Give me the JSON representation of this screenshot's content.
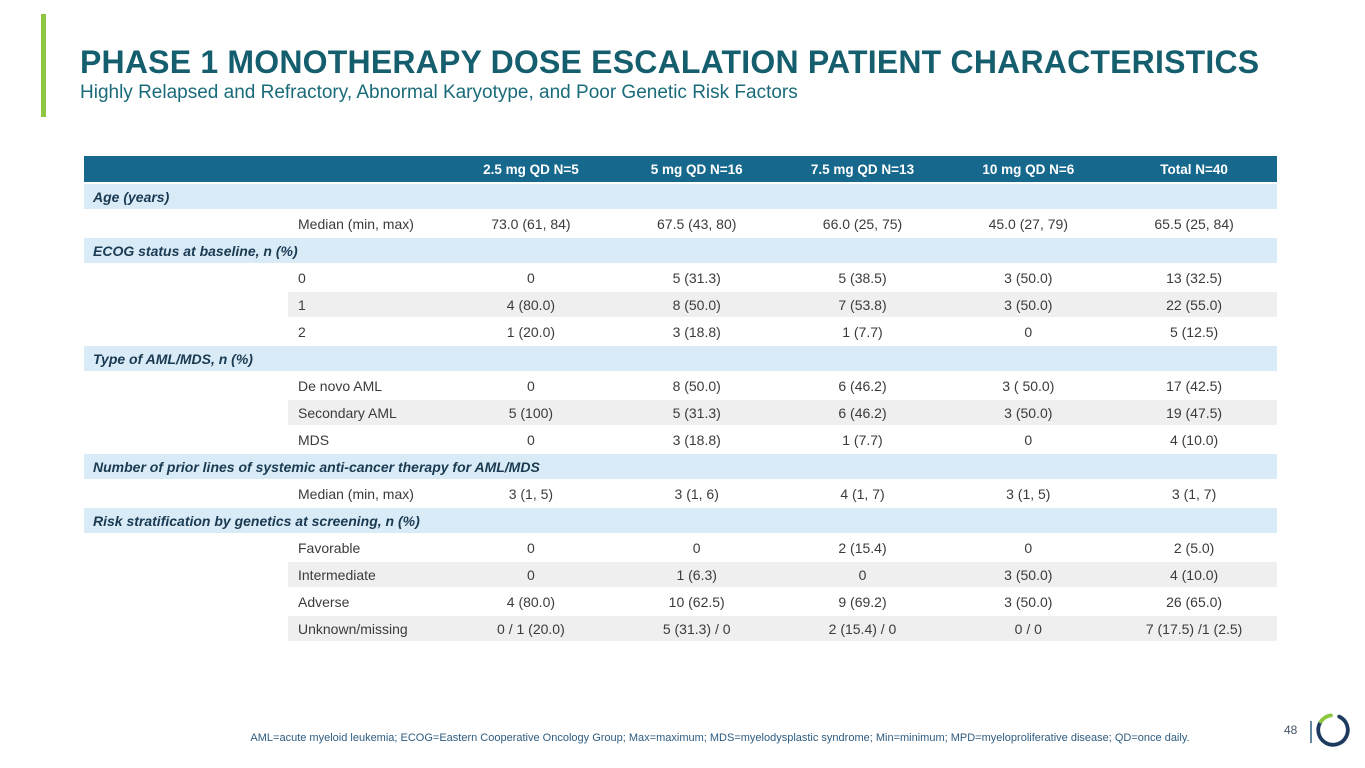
{
  "slide": {
    "title": "PHASE 1 MONOTHERAPY DOSE ESCALATION PATIENT CHARACTERISTICS",
    "subtitle": "Highly Relapsed and Refractory, Abnormal Karyotype, and Poor Genetic Risk Factors",
    "page_number": "48",
    "footnote": "AML=acute myeloid leukemia; ECOG=Eastern Cooperative Oncology Group; Max=maximum; MDS=myelodysplastic syndrome; Min=minimum; MPD=myeloproliferative disease; QD=once daily."
  },
  "colors": {
    "accent_green": "#8DC63F",
    "title_teal": "#155E6E",
    "header_teal": "#16688D",
    "section_blue_bg": "#D9EBF7",
    "section_text_navy": "#1A3A52",
    "stripe_gray": "#EFEFEF",
    "footnote_navy": "#2E5C80",
    "logo_navy": "#1F3A5F"
  },
  "icons": {
    "logo": "ring-logo"
  },
  "table": {
    "columns": [
      "",
      "2.5 mg QD N=5",
      "5 mg QD N=16",
      "7.5 mg QD N=13",
      "10 mg QD N=6",
      "Total N=40"
    ],
    "sections": [
      {
        "header": "Age (years)",
        "two_line": false,
        "rows": [
          {
            "label": "Median (min, max)",
            "shaded": false,
            "values": [
              "73.0 (61, 84)",
              "67.5 (43, 80)",
              "66.0 (25, 75)",
              "45.0 (27, 79)",
              "65.5 (25, 84)"
            ]
          }
        ]
      },
      {
        "header": "ECOG status at baseline, n (%)",
        "two_line": true,
        "rows": [
          {
            "label": "0",
            "shaded": false,
            "values": [
              "0",
              "5 (31.3)",
              "5 (38.5)",
              "3 (50.0)",
              "13 (32.5)"
            ]
          },
          {
            "label": "1",
            "shaded": true,
            "values": [
              "4 (80.0)",
              "8 (50.0)",
              "7 (53.8)",
              "3 (50.0)",
              "22 (55.0)"
            ]
          },
          {
            "label": "2",
            "shaded": false,
            "values": [
              "1 (20.0)",
              "3 (18.8)",
              "1 (7.7)",
              "0",
              "5 (12.5)"
            ]
          }
        ]
      },
      {
        "header": "Type of AML/MDS, n (%)",
        "two_line": false,
        "rows": [
          {
            "label": "De novo AML",
            "shaded": false,
            "values": [
              "0",
              "8 (50.0)",
              "6 (46.2)",
              "3 ( 50.0)",
              "17 (42.5)"
            ]
          },
          {
            "label": "Secondary AML",
            "shaded": true,
            "values": [
              "5 (100)",
              "5 (31.3)",
              "6 (46.2)",
              "3 (50.0)",
              "19 (47.5)"
            ]
          },
          {
            "label": "MDS",
            "shaded": false,
            "values": [
              "0",
              "3 (18.8)",
              "1 (7.7)",
              "0",
              "4 (10.0)"
            ]
          }
        ]
      },
      {
        "header": "Number of prior lines of systemic anti-cancer therapy for AML/MDS",
        "two_line": false,
        "rows": [
          {
            "label": "Median (min, max)",
            "shaded": false,
            "values": [
              "3 (1, 5)",
              "3 (1, 6)",
              "4 (1, 7)",
              "3 (1, 5)",
              "3 (1, 7)"
            ]
          }
        ]
      },
      {
        "header": "Risk stratification by genetics at screening, n (%)",
        "two_line": false,
        "rows": [
          {
            "label": "Favorable",
            "shaded": false,
            "values": [
              "0",
              "0",
              "2 (15.4)",
              "0",
              "2 (5.0)"
            ]
          },
          {
            "label": "Intermediate",
            "shaded": true,
            "values": [
              "0",
              "1 (6.3)",
              "0",
              "3 (50.0)",
              "4 (10.0)"
            ]
          },
          {
            "label": "Adverse",
            "shaded": false,
            "values": [
              "4 (80.0)",
              "10 (62.5)",
              "9 (69.2)",
              "3 (50.0)",
              "26 (65.0)"
            ]
          },
          {
            "label": "Unknown/missing",
            "shaded": true,
            "values": [
              "0 / 1 (20.0)",
              "5 (31.3) / 0",
              "2 (15.4) / 0",
              "0 / 0",
              "7 (17.5) /1 (2.5)"
            ]
          }
        ]
      }
    ]
  }
}
